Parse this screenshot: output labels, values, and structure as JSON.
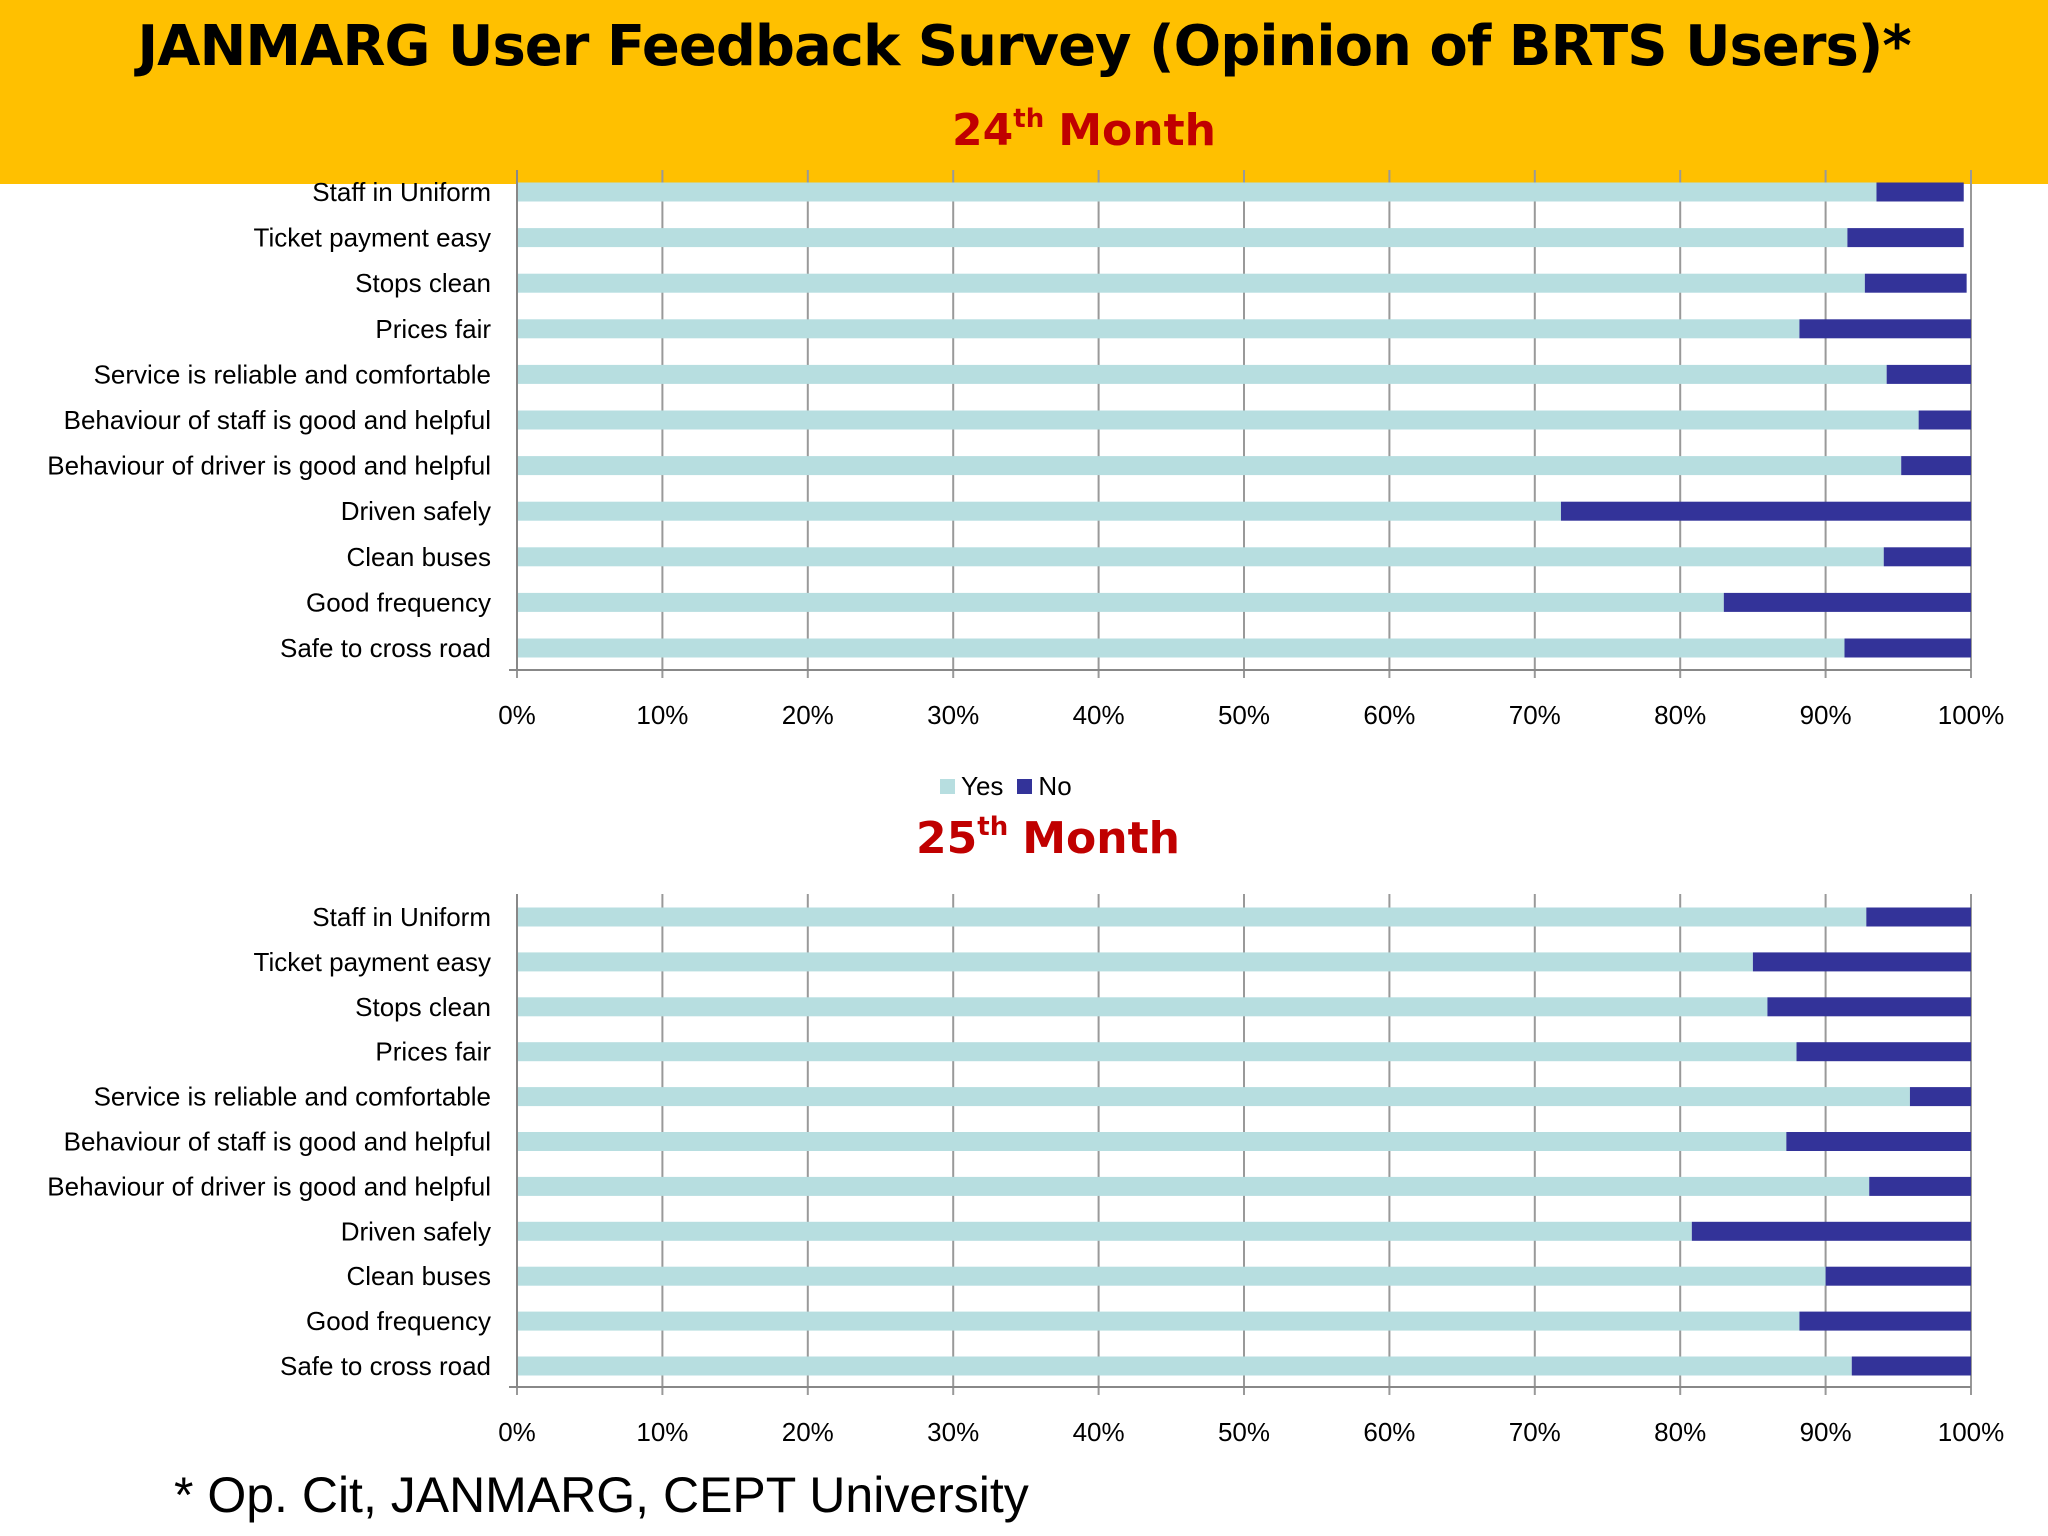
{
  "header": {
    "title": "JANMARG User Feedback Survey (Opinion of  BRTS Users)*",
    "colors": {
      "band": "#FFC000",
      "subtitle": "#C00000"
    }
  },
  "footnote": "* Op. Cit, JANMARG, CEPT University",
  "legend": [
    {
      "name": "Yes",
      "color": "#B7DEE0"
    },
    {
      "name": "No",
      "color": "#333399"
    }
  ],
  "chart_data": [
    {
      "type": "bar",
      "orientation": "horizontal",
      "stacked": "percent",
      "title_number": "24",
      "title_suffix": "th",
      "title_rest": "Month",
      "categories": [
        "Staff in Uniform",
        "Ticket payment easy",
        "Stops clean",
        "Prices fair",
        "Service is reliable and comfortable",
        "Behaviour of staff is good and helpful",
        "Behaviour of driver is good and helpful",
        "Driven safely",
        "Clean buses",
        "Good frequency",
        "Safe to cross road"
      ],
      "series": [
        {
          "name": "Yes",
          "values": [
            93.5,
            91.5,
            92.7,
            88.2,
            94.2,
            96.4,
            95.2,
            71.8,
            94.0,
            83.0,
            91.3
          ]
        },
        {
          "name": "No",
          "values": [
            6.0,
            8.0,
            7.0,
            11.8,
            5.8,
            3.6,
            4.8,
            28.2,
            6.0,
            17.0,
            8.7
          ]
        }
      ],
      "xticks": [
        "0%",
        "10%",
        "20%",
        "30%",
        "40%",
        "50%",
        "60%",
        "70%",
        "80%",
        "90%",
        "100%"
      ],
      "xlim": [
        0,
        100
      ],
      "grid": true,
      "legend_position": "bottom"
    },
    {
      "type": "bar",
      "orientation": "horizontal",
      "stacked": "percent",
      "title_number": "25",
      "title_suffix": "th",
      "title_rest": "Month",
      "categories": [
        "Staff in Uniform",
        "Ticket payment easy",
        "Stops clean",
        "Prices fair",
        "Service is reliable and comfortable",
        "Behaviour of staff is good and helpful",
        "Behaviour of driver is good and helpful",
        "Driven safely",
        "Clean buses",
        "Good frequency",
        "Safe to cross road"
      ],
      "series": [
        {
          "name": "Yes",
          "values": [
            92.8,
            85.0,
            86.0,
            88.0,
            95.8,
            87.3,
            93.0,
            80.8,
            90.0,
            88.2,
            91.8
          ]
        },
        {
          "name": "No",
          "values": [
            7.2,
            15.0,
            14.0,
            12.0,
            4.2,
            12.7,
            7.0,
            19.2,
            10.0,
            11.8,
            8.2
          ]
        }
      ],
      "xticks": [
        "0%",
        "10%",
        "20%",
        "30%",
        "40%",
        "50%",
        "60%",
        "70%",
        "80%",
        "90%",
        "100%"
      ],
      "xlim": [
        0,
        100
      ],
      "grid": true
    }
  ]
}
